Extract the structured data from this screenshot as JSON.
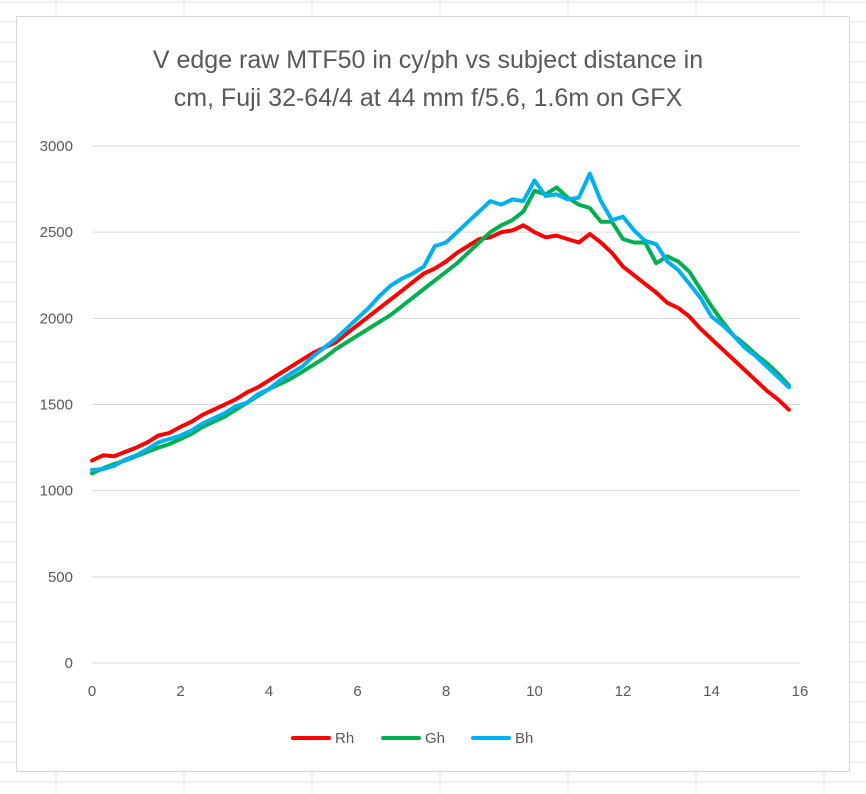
{
  "chart_data": {
    "type": "line",
    "title_lines": [
      "V edge raw MTF50 in cy/ph vs subject distance in",
      "cm, Fuji 32-64/4 at 44 mm f/5.6, 1.6m on GFX"
    ],
    "xlabel": "",
    "ylabel": "",
    "xlim": [
      0,
      16
    ],
    "ylim": [
      0,
      3000
    ],
    "x_ticks": [
      "0",
      "2",
      "4",
      "6",
      "8",
      "10",
      "12",
      "14",
      "16"
    ],
    "y_ticks": [
      "0",
      "500",
      "1000",
      "1500",
      "2000",
      "2500",
      "3000"
    ],
    "grid": "horizontal",
    "legend_position": "bottom",
    "series": [
      {
        "name": "Rh",
        "color": "#ff0000",
        "points": [
          [
            0,
            1175
          ],
          [
            0.25,
            1205
          ],
          [
            0.5,
            1200
          ],
          [
            0.75,
            1225
          ],
          [
            1,
            1250
          ],
          [
            1.25,
            1280
          ],
          [
            1.5,
            1320
          ],
          [
            1.75,
            1335
          ],
          [
            2,
            1370
          ],
          [
            2.25,
            1400
          ],
          [
            2.5,
            1440
          ],
          [
            2.75,
            1470
          ],
          [
            3,
            1500
          ],
          [
            3.25,
            1530
          ],
          [
            3.5,
            1570
          ],
          [
            3.75,
            1600
          ],
          [
            4,
            1640
          ],
          [
            4.25,
            1680
          ],
          [
            4.5,
            1720
          ],
          [
            4.75,
            1760
          ],
          [
            5,
            1800
          ],
          [
            5.25,
            1830
          ],
          [
            5.5,
            1860
          ],
          [
            5.75,
            1910
          ],
          [
            6,
            1960
          ],
          [
            6.25,
            2010
          ],
          [
            6.5,
            2060
          ],
          [
            6.75,
            2110
          ],
          [
            7,
            2160
          ],
          [
            7.25,
            2210
          ],
          [
            7.5,
            2260
          ],
          [
            7.75,
            2290
          ],
          [
            8,
            2330
          ],
          [
            8.25,
            2380
          ],
          [
            8.5,
            2420
          ],
          [
            8.75,
            2460
          ],
          [
            9,
            2470
          ],
          [
            9.25,
            2500
          ],
          [
            9.5,
            2510
          ],
          [
            9.75,
            2540
          ],
          [
            10,
            2500
          ],
          [
            10.25,
            2470
          ],
          [
            10.5,
            2480
          ],
          [
            10.75,
            2460
          ],
          [
            11,
            2440
          ],
          [
            11.25,
            2490
          ],
          [
            11.5,
            2440
          ],
          [
            11.75,
            2380
          ],
          [
            12,
            2300
          ],
          [
            12.25,
            2250
          ],
          [
            12.5,
            2200
          ],
          [
            12.75,
            2150
          ],
          [
            13,
            2090
          ],
          [
            13.25,
            2060
          ],
          [
            13.5,
            2010
          ],
          [
            13.75,
            1940
          ],
          [
            14,
            1880
          ],
          [
            14.25,
            1820
          ],
          [
            14.5,
            1760
          ],
          [
            14.75,
            1700
          ],
          [
            15,
            1640
          ],
          [
            15.25,
            1580
          ],
          [
            15.5,
            1530
          ],
          [
            15.75,
            1470
          ]
        ]
      },
      {
        "name": "Gh",
        "color": "#00b050",
        "points": [
          [
            0,
            1100
          ],
          [
            0.25,
            1130
          ],
          [
            0.5,
            1155
          ],
          [
            0.75,
            1175
          ],
          [
            1,
            1200
          ],
          [
            1.25,
            1225
          ],
          [
            1.5,
            1250
          ],
          [
            1.75,
            1270
          ],
          [
            2,
            1300
          ],
          [
            2.25,
            1330
          ],
          [
            2.5,
            1370
          ],
          [
            2.75,
            1400
          ],
          [
            3,
            1430
          ],
          [
            3.25,
            1470
          ],
          [
            3.5,
            1510
          ],
          [
            3.75,
            1550
          ],
          [
            4,
            1590
          ],
          [
            4.25,
            1620
          ],
          [
            4.5,
            1650
          ],
          [
            4.75,
            1690
          ],
          [
            5,
            1730
          ],
          [
            5.25,
            1770
          ],
          [
            5.5,
            1820
          ],
          [
            5.75,
            1860
          ],
          [
            6,
            1900
          ],
          [
            6.25,
            1940
          ],
          [
            6.5,
            1980
          ],
          [
            6.75,
            2020
          ],
          [
            7,
            2070
          ],
          [
            7.25,
            2120
          ],
          [
            7.5,
            2170
          ],
          [
            7.75,
            2220
          ],
          [
            8,
            2270
          ],
          [
            8.25,
            2320
          ],
          [
            8.5,
            2380
          ],
          [
            8.75,
            2440
          ],
          [
            9,
            2500
          ],
          [
            9.25,
            2540
          ],
          [
            9.5,
            2570
          ],
          [
            9.75,
            2620
          ],
          [
            10,
            2740
          ],
          [
            10.25,
            2720
          ],
          [
            10.5,
            2760
          ],
          [
            10.75,
            2700
          ],
          [
            11,
            2660
          ],
          [
            11.25,
            2640
          ],
          [
            11.5,
            2560
          ],
          [
            11.75,
            2560
          ],
          [
            12,
            2460
          ],
          [
            12.25,
            2440
          ],
          [
            12.5,
            2440
          ],
          [
            12.75,
            2320
          ],
          [
            13,
            2360
          ],
          [
            13.25,
            2330
          ],
          [
            13.5,
            2270
          ],
          [
            13.75,
            2170
          ],
          [
            14,
            2070
          ],
          [
            14.25,
            1980
          ],
          [
            14.5,
            1900
          ],
          [
            14.75,
            1850
          ],
          [
            15,
            1790
          ],
          [
            15.25,
            1740
          ],
          [
            15.5,
            1680
          ],
          [
            15.75,
            1610
          ]
        ]
      },
      {
        "name": "Bh",
        "color": "#00b0f0",
        "points": [
          [
            0,
            1120
          ],
          [
            0.25,
            1125
          ],
          [
            0.5,
            1145
          ],
          [
            0.75,
            1180
          ],
          [
            1,
            1205
          ],
          [
            1.25,
            1240
          ],
          [
            1.5,
            1280
          ],
          [
            1.75,
            1300
          ],
          [
            2,
            1320
          ],
          [
            2.25,
            1350
          ],
          [
            2.5,
            1390
          ],
          [
            2.75,
            1420
          ],
          [
            3,
            1450
          ],
          [
            3.25,
            1490
          ],
          [
            3.5,
            1510
          ],
          [
            3.75,
            1560
          ],
          [
            4,
            1590
          ],
          [
            4.25,
            1640
          ],
          [
            4.5,
            1680
          ],
          [
            4.75,
            1720
          ],
          [
            5,
            1780
          ],
          [
            5.25,
            1830
          ],
          [
            5.5,
            1880
          ],
          [
            5.75,
            1940
          ],
          [
            6,
            2000
          ],
          [
            6.25,
            2060
          ],
          [
            6.5,
            2130
          ],
          [
            6.75,
            2190
          ],
          [
            7,
            2230
          ],
          [
            7.25,
            2260
          ],
          [
            7.5,
            2300
          ],
          [
            7.75,
            2420
          ],
          [
            8,
            2440
          ],
          [
            8.25,
            2500
          ],
          [
            8.5,
            2560
          ],
          [
            8.75,
            2620
          ],
          [
            9,
            2680
          ],
          [
            9.25,
            2660
          ],
          [
            9.5,
            2690
          ],
          [
            9.75,
            2680
          ],
          [
            10,
            2800
          ],
          [
            10.25,
            2710
          ],
          [
            10.5,
            2720
          ],
          [
            10.75,
            2690
          ],
          [
            11,
            2700
          ],
          [
            11.25,
            2840
          ],
          [
            11.5,
            2680
          ],
          [
            11.75,
            2570
          ],
          [
            12,
            2590
          ],
          [
            12.25,
            2510
          ],
          [
            12.5,
            2450
          ],
          [
            12.75,
            2430
          ],
          [
            13,
            2330
          ],
          [
            13.25,
            2280
          ],
          [
            13.5,
            2200
          ],
          [
            13.75,
            2120
          ],
          [
            14,
            2010
          ],
          [
            14.25,
            1960
          ],
          [
            14.5,
            1900
          ],
          [
            14.75,
            1830
          ],
          [
            15,
            1780
          ],
          [
            15.25,
            1720
          ],
          [
            15.5,
            1660
          ],
          [
            15.75,
            1600
          ]
        ]
      }
    ]
  }
}
